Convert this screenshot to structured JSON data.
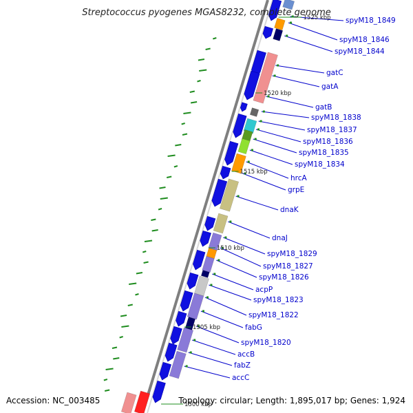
{
  "title": "Streptococcus pyogenes MGAS8232, complete genome",
  "footer": {
    "accession": "Accession: NC_003485",
    "topology": "Topology: circular; Length: 1,895,017 bp; Genes: 1,924"
  },
  "colors": {
    "forward_cds": "#1010e0",
    "reverse_cds": "#8a7ad8",
    "backbone": "#888888",
    "gene_label": "#0000cc",
    "gc_skew_mark": "#1e8c1e"
  },
  "kbp_markers": [
    "1525 kbp",
    "1520 kbp",
    "1515 kbp",
    "1510 kbp",
    "1505 kbp",
    "1500 kbp"
  ],
  "gene_labels": [
    {
      "id": "spyM18_1849",
      "text": "spyM18_1849"
    },
    {
      "id": "spyM18_1846",
      "text": "spyM18_1846"
    },
    {
      "id": "spyM18_1844",
      "text": "spyM18_1844"
    },
    {
      "id": "gatC",
      "text": "gatC"
    },
    {
      "id": "gatA",
      "text": "gatA"
    },
    {
      "id": "gatB",
      "text": "gatB"
    },
    {
      "id": "spyM18_1838",
      "text": "spyM18_1838"
    },
    {
      "id": "spyM18_1837",
      "text": "spyM18_1837"
    },
    {
      "id": "spyM18_1836",
      "text": "spyM18_1836"
    },
    {
      "id": "spyM18_1835",
      "text": "spyM18_1835"
    },
    {
      "id": "spyM18_1834",
      "text": "spyM18_1834"
    },
    {
      "id": "hrcA",
      "text": "hrcA"
    },
    {
      "id": "grpE",
      "text": "grpE"
    },
    {
      "id": "dnaK",
      "text": "dnaK"
    },
    {
      "id": "dnaJ",
      "text": "dnaJ"
    },
    {
      "id": "spyM18_1829",
      "text": "spyM18_1829"
    },
    {
      "id": "spyM18_1827",
      "text": "spyM18_1827"
    },
    {
      "id": "spyM18_1826",
      "text": "spyM18_1826"
    },
    {
      "id": "acpP",
      "text": "acpP"
    },
    {
      "id": "spyM18_1823",
      "text": "spyM18_1823"
    },
    {
      "id": "spyM18_1822",
      "text": "spyM18_1822"
    },
    {
      "id": "fabG",
      "text": "fabG"
    },
    {
      "id": "spyM18_1820",
      "text": "spyM18_1820"
    },
    {
      "id": "accB",
      "text": "accB"
    },
    {
      "id": "fabZ",
      "text": "fabZ"
    },
    {
      "id": "accC",
      "text": "accC"
    }
  ]
}
